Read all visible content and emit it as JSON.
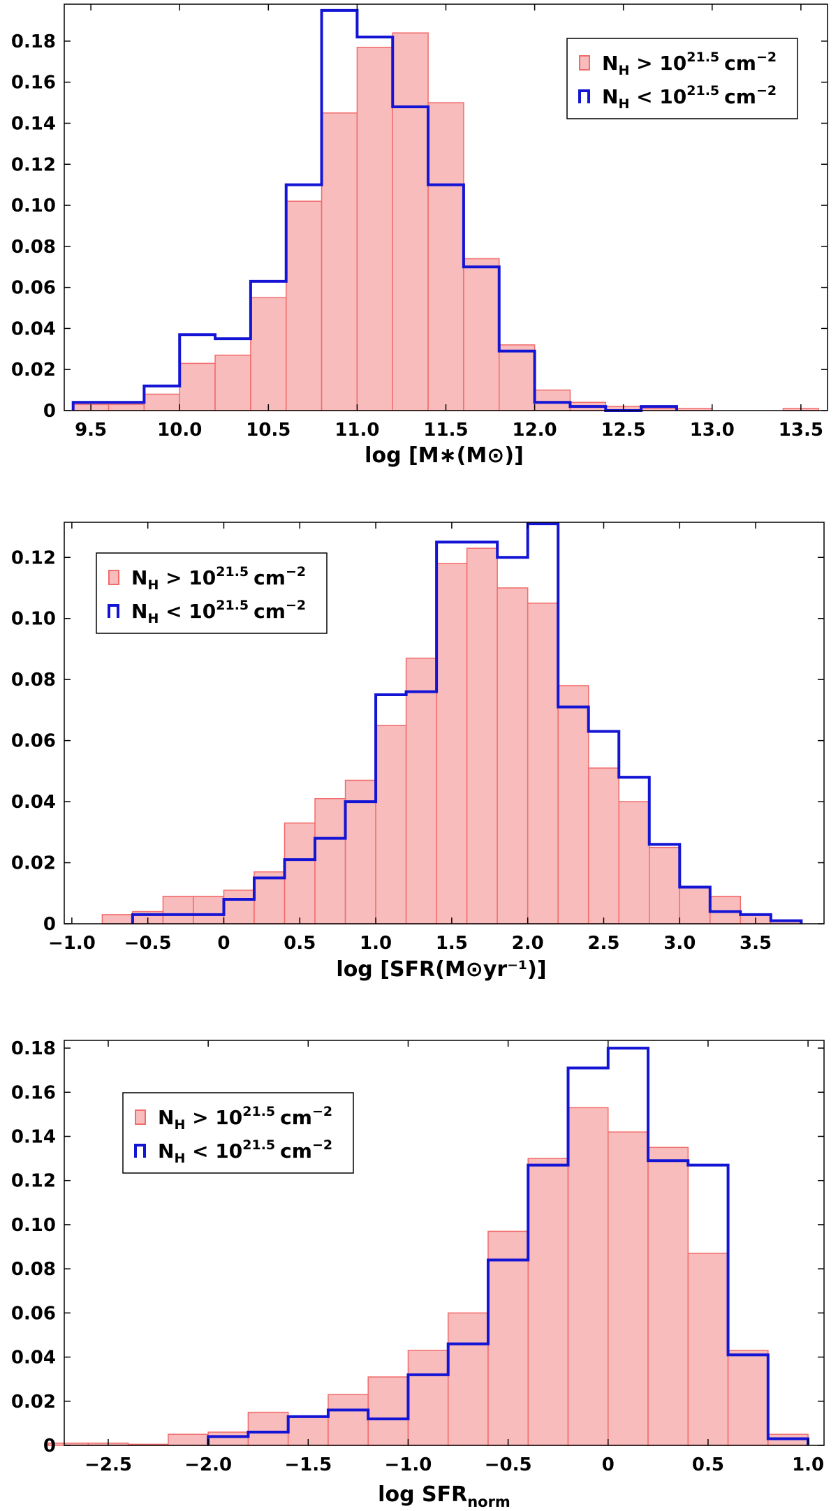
{
  "colors": {
    "high": "#f26b6b",
    "high_fill": "#f8bcbc",
    "low": "#1414d4",
    "frame": "#000000"
  },
  "legend_labels": {
    "high": {
      "main": "N",
      "sub": "H",
      "rel": "> 10",
      "exp": "21.5",
      "unit": "cm",
      "unit_exp": "−2"
    },
    "low": {
      "main": "N",
      "sub": "H",
      "rel": "< 10",
      "exp": "21.5",
      "unit": "cm",
      "unit_exp": "−2"
    }
  },
  "chart_data": [
    {
      "type": "bar",
      "xlabel": "log [M∗(M⊙)]",
      "xlim": [
        9.35,
        13.65
      ],
      "ylim": [
        0,
        0.198
      ],
      "xticks": [
        9.5,
        10.0,
        10.5,
        11.0,
        11.5,
        12.0,
        12.5,
        13.0,
        13.5
      ],
      "xtick_labels": [
        "9.5",
        "10.0",
        "10.5",
        "11.0",
        "11.5",
        "12.0",
        "12.5",
        "13.0",
        "13.5"
      ],
      "yticks": [
        0,
        0.02,
        0.04,
        0.06,
        0.08,
        0.1,
        0.12,
        0.14,
        0.16,
        0.18
      ],
      "ytick_labels": [
        "0",
        "0.02",
        "0.04",
        "0.06",
        "0.08",
        "0.10",
        "0.12",
        "0.14",
        "0.16",
        "0.18"
      ],
      "bin_edges": [
        9.4,
        9.6,
        9.8,
        10.0,
        10.2,
        10.4,
        10.6,
        10.8,
        11.0,
        11.2,
        11.4,
        11.6,
        11.8,
        12.0,
        12.2,
        12.4,
        12.6,
        12.8,
        13.0,
        13.2,
        13.4,
        13.6
      ],
      "legend_position": "top-right",
      "series": [
        {
          "name": "N_H > 10^21.5 cm^-2",
          "values": [
            0.003,
            0.003,
            0.008,
            0.023,
            0.027,
            0.055,
            0.102,
            0.145,
            0.177,
            0.184,
            0.15,
            0.074,
            0.032,
            0.01,
            0.004,
            0.002,
            0.001,
            0.001,
            0,
            0,
            0.001
          ]
        },
        {
          "name": "N_H < 10^21.5 cm^-2",
          "values": [
            0.004,
            0.004,
            0.012,
            0.037,
            0.035,
            0.063,
            0.11,
            0.195,
            0.182,
            0.148,
            0.11,
            0.07,
            0.029,
            0.004,
            0.002,
            0,
            0.002,
            0,
            0,
            0,
            0
          ]
        }
      ]
    },
    {
      "type": "bar",
      "xlabel": "log [SFR(M⊙yr⁻¹)]",
      "xlim": [
        -1.05,
        3.95
      ],
      "ylim": [
        0,
        0.1315
      ],
      "xticks": [
        -1.0,
        -0.5,
        0,
        0.5,
        1.0,
        1.5,
        2.0,
        2.5,
        3.0,
        3.5
      ],
      "xtick_labels": [
        "−1.0",
        "−0.5",
        "0",
        "0.5",
        "1.0",
        "1.5",
        "2.0",
        "2.5",
        "3.0",
        "3.5"
      ],
      "yticks": [
        0,
        0.02,
        0.04,
        0.06,
        0.08,
        0.1,
        0.12
      ],
      "ytick_labels": [
        "0",
        "0.02",
        "0.04",
        "0.06",
        "0.08",
        "0.10",
        "0.12"
      ],
      "bin_edges": [
        -0.8,
        -0.6,
        -0.4,
        -0.2,
        0.0,
        0.2,
        0.4,
        0.6,
        0.8,
        1.0,
        1.2,
        1.4,
        1.6,
        1.8,
        2.0,
        2.2,
        2.4,
        2.6,
        2.8,
        3.0,
        3.2,
        3.4,
        3.6,
        3.8
      ],
      "legend_position": "top-left",
      "series": [
        {
          "name": "N_H > 10^21.5 cm^-2",
          "values": [
            0.003,
            0.004,
            0.009,
            0.009,
            0.011,
            0.017,
            0.033,
            0.041,
            0.047,
            0.065,
            0.087,
            0.118,
            0.123,
            0.11,
            0.105,
            0.078,
            0.051,
            0.04,
            0.025,
            0.012,
            0.009,
            0.003,
            0.001
          ]
        },
        {
          "name": "N_H < 10^21.5 cm^-2",
          "values": [
            0,
            0.003,
            0.003,
            0.003,
            0.008,
            0.015,
            0.021,
            0.028,
            0.04,
            0.075,
            0.076,
            0.125,
            0.125,
            0.12,
            0.131,
            0.071,
            0.063,
            0.048,
            0.026,
            0.012,
            0.004,
            0.003,
            0.001
          ]
        }
      ]
    },
    {
      "type": "bar",
      "xlabel": "log SFR",
      "xlabel_sub": "norm",
      "xlim": [
        -2.72,
        1.08
      ],
      "ylim": [
        0,
        0.1835
      ],
      "xticks": [
        -2.5,
        -2.0,
        -1.5,
        -1.0,
        -0.5,
        0,
        0.5,
        1.0
      ],
      "xtick_labels": [
        "−2.5",
        "−2.0",
        "−1.5",
        "−1.0",
        "−0.5",
        "0",
        "0.5",
        "1.0"
      ],
      "yticks": [
        0,
        0.02,
        0.04,
        0.06,
        0.08,
        0.1,
        0.12,
        0.14,
        0.16,
        0.18
      ],
      "ytick_labels": [
        "0",
        "0.02",
        "0.04",
        "0.06",
        "0.08",
        "0.10",
        "0.12",
        "0.14",
        "0.16",
        "0.18"
      ],
      "bin_edges": [
        -2.8,
        -2.6,
        -2.4,
        -2.2,
        -2.0,
        -1.8,
        -1.6,
        -1.4,
        -1.2,
        -1.0,
        -0.8,
        -0.6,
        -0.4,
        -0.2,
        0.0,
        0.2,
        0.4,
        0.6,
        0.8,
        1.0
      ],
      "legend_position": "upper-left",
      "series": [
        {
          "name": "N_H > 10^21.5 cm^-2",
          "values": [
            0.001,
            0.001,
            0.0005,
            0.005,
            0.006,
            0.015,
            0.013,
            0.023,
            0.031,
            0.043,
            0.06,
            0.097,
            0.13,
            0.153,
            0.142,
            0.135,
            0.087,
            0.043,
            0.005
          ]
        },
        {
          "name": "N_H < 10^21.5 cm^-2",
          "values": [
            0,
            0,
            0,
            0,
            0.004,
            0.006,
            0.013,
            0.016,
            0.012,
            0.032,
            0.046,
            0.084,
            0.127,
            0.171,
            0.18,
            0.129,
            0.127,
            0.041,
            0.003
          ]
        }
      ]
    }
  ]
}
